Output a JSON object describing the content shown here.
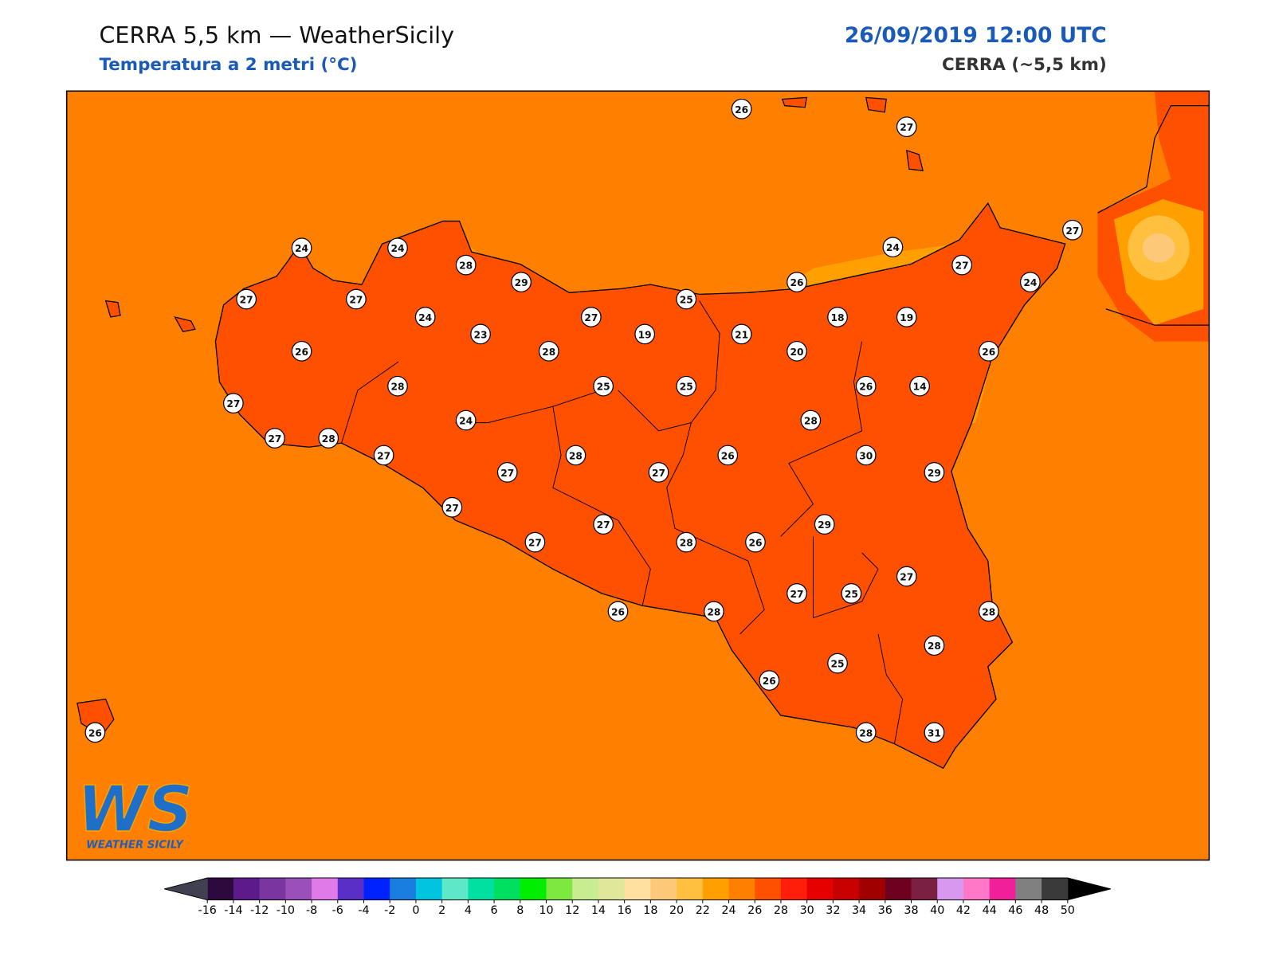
{
  "header": {
    "title": "CERRA 5,5 km — WeatherSicily",
    "subtitle": "Temperatura a 2 metri (°C)",
    "datetime": "26/09/2019 12:00 UTC",
    "model": "CERRA (~5,5 km)"
  },
  "logo": {
    "mark": "WS",
    "name": "WEATHER SICILY"
  },
  "stations": [
    26,
    27,
    24,
    24,
    28,
    29,
    27,
    24,
    27,
    24,
    26,
    25,
    27,
    27,
    24,
    23,
    27,
    19,
    21,
    18,
    19,
    28,
    26,
    20,
    26,
    28,
    25,
    25,
    26,
    14,
    27,
    24,
    28,
    27,
    28,
    27,
    28,
    26,
    30,
    27,
    27,
    29,
    27,
    27,
    29,
    27,
    28,
    26,
    27,
    27,
    25,
    28,
    26,
    28,
    28,
    25,
    26,
    28,
    31,
    26
  ],
  "colorbar": {
    "ticks": [
      -16,
      -14,
      -12,
      -10,
      -8,
      -6,
      -4,
      -2,
      0,
      2,
      4,
      6,
      8,
      10,
      12,
      14,
      16,
      18,
      20,
      22,
      24,
      26,
      28,
      30,
      32,
      34,
      36,
      38,
      40,
      42,
      44,
      46,
      48,
      50
    ],
    "colors": [
      "#2d0a3e",
      "#5c1a8a",
      "#7b35a0",
      "#9b4fb8",
      "#e07ae8",
      "#5a2fc8",
      "#0022ff",
      "#1a7ee0",
      "#00c4e0",
      "#5fe8c8",
      "#00e0a0",
      "#00e060",
      "#00ee00",
      "#7ee840",
      "#c8ec90",
      "#e0e69a",
      "#ffe0a0",
      "#fdc878",
      "#ffc040",
      "#ffa000",
      "#ff8000",
      "#ff5000",
      "#ff1e0a",
      "#e60000",
      "#c80000",
      "#a00000",
      "#6e0020",
      "#7a2040",
      "#d898f0",
      "#ff78c8",
      "#f0209a",
      "#808080",
      "#3a3a3a"
    ],
    "under": "#404050",
    "over": "#000000"
  }
}
